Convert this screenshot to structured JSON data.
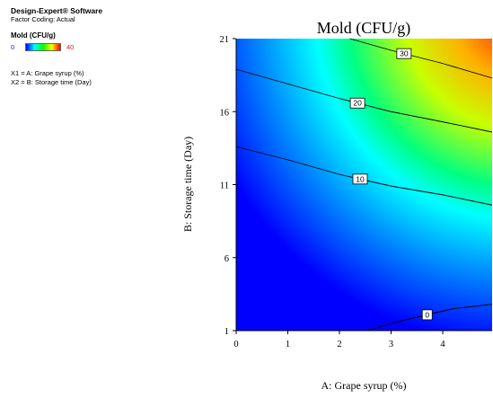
{
  "software": {
    "name": "Design-Expert® Software",
    "coding": "Factor Coding: Actual"
  },
  "legend": {
    "response": "Mold (CFU/g)",
    "min": "0",
    "max": "40"
  },
  "factors": [
    "X1 = A: Grape syrup (%)",
    "X2 = B: Storage time (Day)"
  ],
  "colors": {
    "low": "#0000ff",
    "mid_low": "#00ffff",
    "mid": "#00ff00",
    "mid_high": "#ffff00",
    "high": "#ff0000"
  },
  "chart_data": {
    "type": "heatmap",
    "subtype": "contour",
    "title": "Mold (CFU/g)",
    "xlabel": "A: Grape syrup (%)",
    "ylabel": "B: Storage time (Day)",
    "xlim": [
      0,
      5
    ],
    "ylim": [
      1,
      21
    ],
    "x_ticks": [
      "0",
      "1",
      "2",
      "3",
      "4"
    ],
    "y_ticks": [
      "1",
      "6",
      "11",
      "16",
      "21"
    ],
    "color_range": [
      0,
      40
    ],
    "contours": [
      {
        "level": 0,
        "label": "0",
        "points": [
          [
            2.55,
            1
          ],
          [
            3.0,
            1.5
          ],
          [
            3.6,
            2.0
          ],
          [
            4.2,
            2.5
          ],
          [
            5.0,
            2.8
          ]
        ]
      },
      {
        "level": 10,
        "label": "10",
        "points": [
          [
            0,
            13.6
          ],
          [
            1.0,
            12.7
          ],
          [
            2.0,
            11.7
          ],
          [
            3.0,
            10.9
          ],
          [
            4.0,
            10.3
          ],
          [
            5.0,
            9.6
          ]
        ]
      },
      {
        "level": 20,
        "label": "20",
        "points": [
          [
            0,
            18.9
          ],
          [
            1.0,
            17.9
          ],
          [
            2.0,
            16.9
          ],
          [
            3.0,
            16.0
          ],
          [
            4.0,
            15.3
          ],
          [
            5.0,
            14.6
          ]
        ]
      },
      {
        "level": 30,
        "label": "30",
        "points": [
          [
            2.2,
            21
          ],
          [
            3.0,
            20.2
          ],
          [
            4.0,
            19.3
          ],
          [
            5.0,
            18.3
          ]
        ]
      }
    ]
  }
}
